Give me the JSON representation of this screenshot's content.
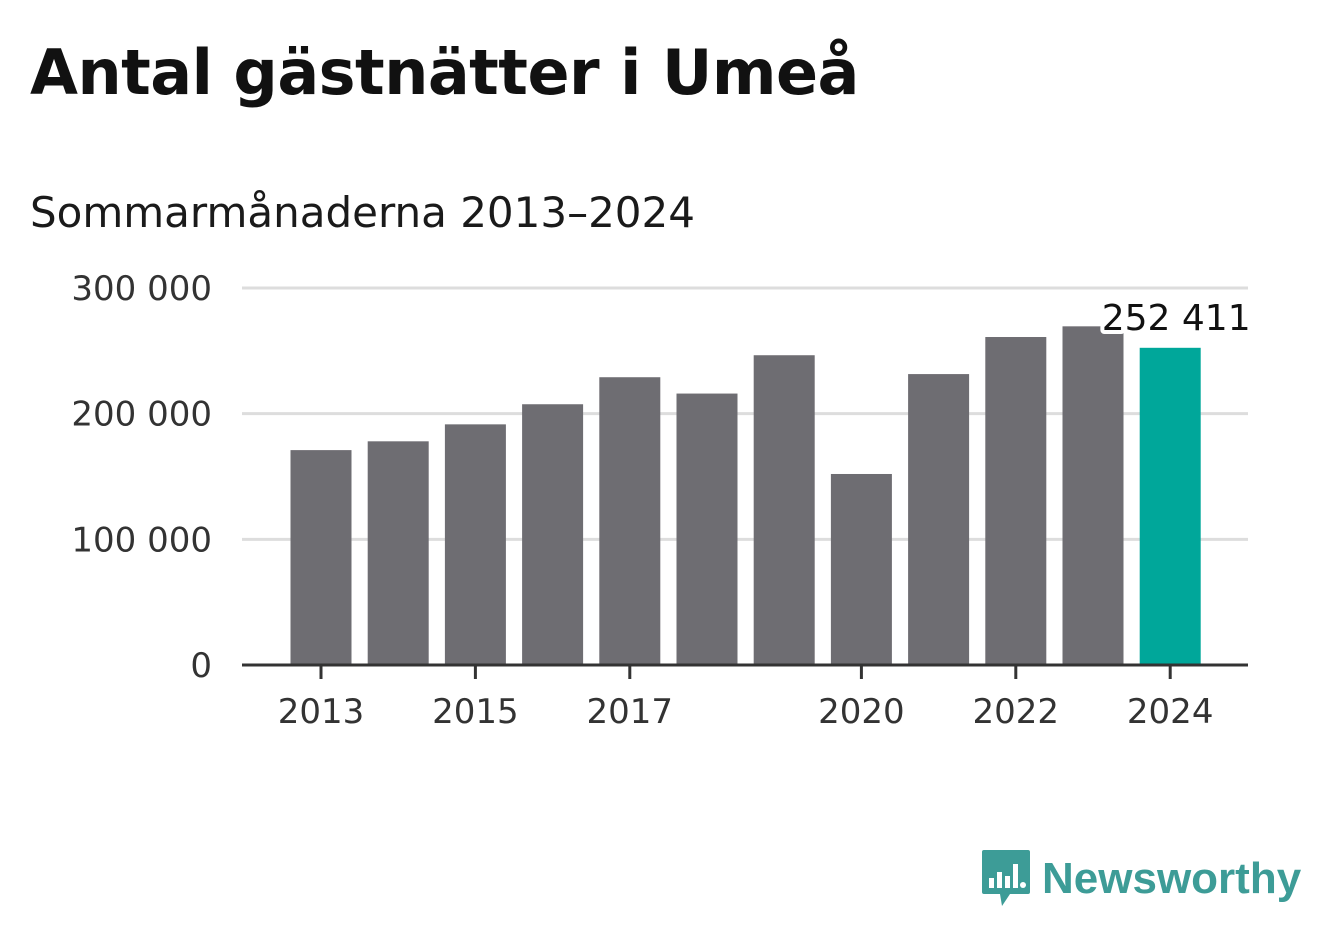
{
  "title": "Antal gästnätter i Umeå",
  "subtitle": "Sommarmånaderna 2013–2024",
  "brand": {
    "name": "Newsworthy",
    "color": "#3d9c97",
    "icon": "bar-chart-speech-bubble-icon"
  },
  "colors": {
    "bar": "#6e6d72",
    "highlight": "#00a79a",
    "grid": "#dddddd",
    "axis": "#333333"
  },
  "chart_data": {
    "type": "bar",
    "categories": [
      "2013",
      "2014",
      "2015",
      "2016",
      "2017",
      "2018",
      "2019",
      "2020",
      "2021",
      "2022",
      "2023",
      "2024"
    ],
    "values": [
      171000,
      178000,
      191500,
      207500,
      229000,
      216000,
      246500,
      152000,
      231500,
      261000,
      269500,
      252411
    ],
    "highlight_index": 11,
    "data_labels": [
      {
        "index": 11,
        "text": "252 411"
      }
    ],
    "x_tick_labels": [
      "2013",
      "2015",
      "2017",
      "2020",
      "2022",
      "2024"
    ],
    "y_ticks": [
      {
        "value": 0,
        "label": "0"
      },
      {
        "value": 100000,
        "label": "100 000"
      },
      {
        "value": 200000,
        "label": "200 000"
      },
      {
        "value": 300000,
        "label": "300 000"
      }
    ],
    "ylim": [
      0,
      300000
    ],
    "grid": true,
    "legend": false
  }
}
